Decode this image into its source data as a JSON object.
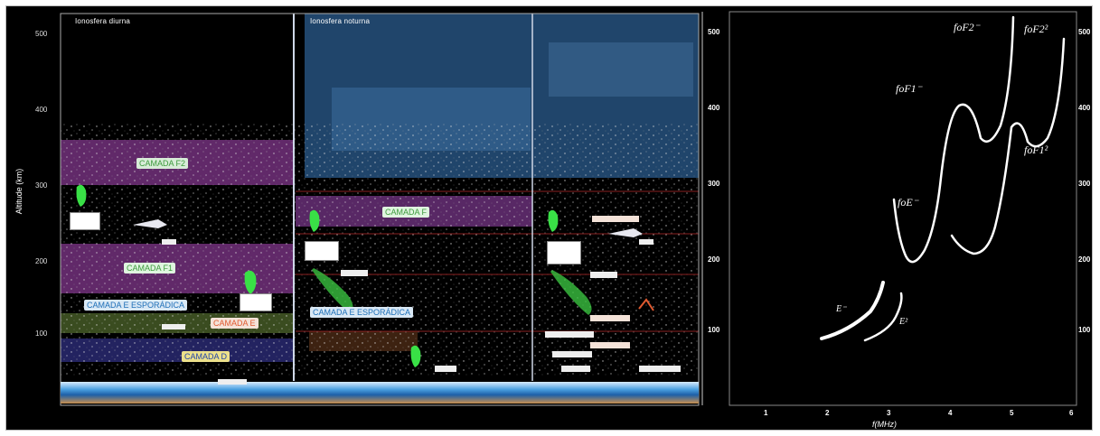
{
  "left_panel": {
    "pane_titles": [
      "Ionosfera diurna",
      "Ionosfera noturna"
    ],
    "y_axis_label": "Altitude (km)",
    "y_ticks": [
      "500",
      "400",
      "300",
      "200",
      "100"
    ],
    "band_labels": [
      {
        "text": "CAMADA F2",
        "color": "#66ff66",
        "bg": "#d8ecd8"
      },
      {
        "text": "CAMADA F1",
        "color": "#55dd55",
        "bg": "#dff5df"
      },
      {
        "text": "CAMADA E ESPORÁDICA",
        "color": "#1d6fb8",
        "bg": "#d9e8f5"
      },
      {
        "text": "CAMADA E",
        "color": "#e05a30",
        "bg": "#f4e2d8"
      },
      {
        "text": "CAMADA D",
        "color": "#2244aa",
        "bg": "#ece08a"
      },
      {
        "text": "CAMADA F",
        "color": "#4caf50",
        "bg": "#dff5df"
      },
      {
        "text": "CAMADA E ESPORÁDICA",
        "color": "#1d6fb8",
        "bg": "#d9e8f5"
      }
    ]
  },
  "right_panel": {
    "x_axis_label": "f(MHz)",
    "x_ticks": [
      "1",
      "2",
      "3",
      "4",
      "5",
      "6"
    ],
    "y_ticks": [
      "500",
      "400",
      "300",
      "200",
      "100"
    ],
    "curve_labels": [
      "foF2⁻",
      "foF2²",
      "foF1⁻",
      "foF1²",
      "foE⁻",
      "E⁻",
      "E²"
    ]
  },
  "colors": {
    "background": "#000000",
    "f2_band": "#b04ac0",
    "night_sky": "#2b5c8f",
    "curve": "#ffffff",
    "aurora": "#39e046"
  }
}
